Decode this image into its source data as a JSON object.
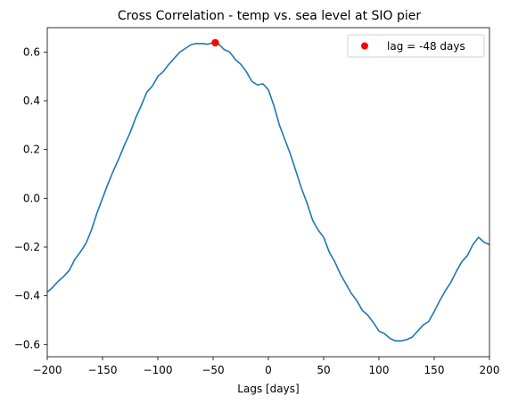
{
  "chart_data": {
    "type": "line",
    "title": "Cross Correlation - temp vs. sea level at SIO pier",
    "xlabel": "Lags [days]",
    "ylabel": "",
    "xlim": [
      -200,
      200
    ],
    "ylim": [
      -0.65,
      0.7
    ],
    "x_ticks": [
      -200,
      -150,
      -100,
      -50,
      0,
      50,
      100,
      150,
      200
    ],
    "x_tick_labels": [
      "−200",
      "−150",
      "−100",
      "−50",
      "0",
      "50",
      "100",
      "150",
      "200"
    ],
    "y_ticks": [
      -0.6,
      -0.4,
      -0.2,
      0.0,
      0.2,
      0.4,
      0.6
    ],
    "y_tick_labels": [
      "−0.6",
      "−0.4",
      "−0.2",
      "0.0",
      "0.2",
      "0.4",
      "0.6"
    ],
    "grid": false,
    "legend": {
      "position": "top-right",
      "entries": [
        "lag = -48 days"
      ]
    },
    "series": [
      {
        "color": "#1f77b4",
        "x": [
          -200,
          -195,
          -190,
          -185,
          -180,
          -175,
          -170,
          -165,
          -160,
          -155,
          -150,
          -145,
          -140,
          -135,
          -130,
          -125,
          -120,
          -115,
          -110,
          -105,
          -100,
          -95,
          -90,
          -85,
          -80,
          -75,
          -70,
          -65,
          -60,
          -55,
          -50,
          -48,
          -45,
          -40,
          -35,
          -30,
          -25,
          -20,
          -15,
          -10,
          -5,
          0,
          5,
          10,
          15,
          20,
          25,
          30,
          35,
          40,
          45,
          50,
          55,
          60,
          65,
          70,
          75,
          80,
          85,
          90,
          95,
          100,
          105,
          110,
          115,
          120,
          125,
          130,
          135,
          140,
          145,
          150,
          155,
          160,
          165,
          170,
          175,
          180,
          185,
          190,
          195,
          200
        ],
        "y": [
          -0.385,
          -0.365,
          -0.34,
          -0.32,
          -0.295,
          -0.25,
          -0.22,
          -0.185,
          -0.13,
          -0.06,
          0.0,
          0.06,
          0.115,
          0.165,
          0.22,
          0.27,
          0.33,
          0.38,
          0.435,
          0.46,
          0.5,
          0.52,
          0.55,
          0.575,
          0.6,
          0.615,
          0.63,
          0.635,
          0.635,
          0.632,
          0.638,
          0.638,
          0.633,
          0.61,
          0.6,
          0.57,
          0.55,
          0.52,
          0.48,
          0.465,
          0.47,
          0.445,
          0.38,
          0.3,
          0.24,
          0.18,
          0.11,
          0.04,
          -0.02,
          -0.09,
          -0.13,
          -0.16,
          -0.22,
          -0.26,
          -0.31,
          -0.35,
          -0.39,
          -0.42,
          -0.46,
          -0.48,
          -0.51,
          -0.545,
          -0.555,
          -0.575,
          -0.585,
          -0.585,
          -0.58,
          -0.57,
          -0.545,
          -0.52,
          -0.505,
          -0.465,
          -0.42,
          -0.38,
          -0.345,
          -0.3,
          -0.26,
          -0.235,
          -0.19,
          -0.16,
          -0.18,
          -0.19
        ]
      }
    ],
    "highlight_point": {
      "x": -48,
      "y": 0.638,
      "color": "#ff0000"
    }
  }
}
